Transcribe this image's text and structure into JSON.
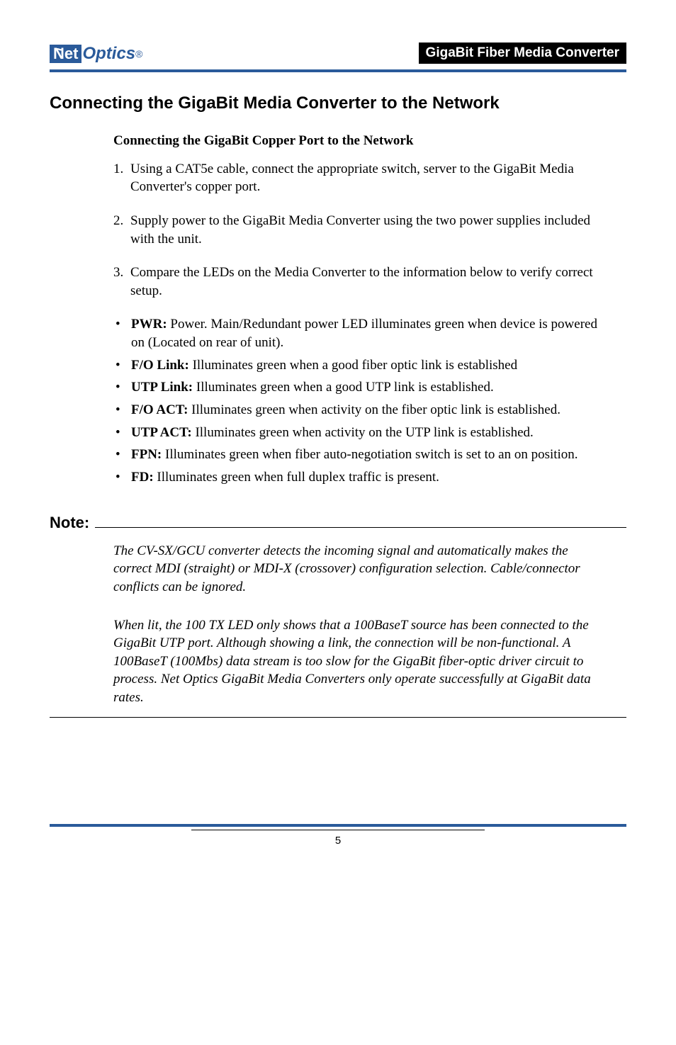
{
  "header": {
    "logo_net": "Net",
    "logo_optics": "Optics",
    "logo_reg": "®",
    "product_title": "GigaBit Fiber Media Converter"
  },
  "section": {
    "title": "Connecting the GigaBit Media Converter to the Network",
    "sub_heading": "Connecting the GigaBit Copper Port to the Network",
    "steps": [
      {
        "num": "1.",
        "text": "Using a CAT5e cable, connect the appropriate switch, server to the GigaBit Media Converter's copper port."
      },
      {
        "num": "2.",
        "text": "Supply power to the GigaBit Media Converter using the two power supplies included with the unit."
      },
      {
        "num": "3.",
        "text": "Compare the LEDs on the Media Converter to the information below to verify correct setup."
      }
    ],
    "bullets": [
      {
        "bold": "PWR:",
        "text": " Power. Main/Redundant power LED illuminates green when device is powered on  (Located on rear of unit)."
      },
      {
        "bold": "F/O Link:",
        "text": " Illuminates green when a good fiber optic link is established"
      },
      {
        "bold": "UTP Link:",
        "text": " Illuminates green when a good UTP link is established."
      },
      {
        "bold": "F/O ACT:",
        "text": " Illuminates green when activity on the fiber optic link is established."
      },
      {
        "bold": "UTP ACT:",
        "text": " Illuminates green when activity on the UTP link is established."
      },
      {
        "bold": "FPN:",
        "text": " Illuminates green when fiber auto-negotiation switch is set to an on position."
      },
      {
        "bold": "FD:",
        "text": " Illuminates green when full duplex traffic is present."
      }
    ]
  },
  "note": {
    "label": "Note:",
    "para1": "The CV-SX/GCU converter detects the incoming signal and automatically makes the correct MDI (straight) or MDI-X (crossover) configuration selection. Cable/connector conflicts can be ignored.",
    "para2": "When lit, the 100 TX LED only shows that a 100BaseT source has been connected to the GigaBit UTP port.  Although showing a link, the connection will be non-functional.  A 100BaseT (100Mbs) data stream is too slow for the GigaBit fiber-optic driver circuit to process.  Net Optics GigaBit Media Converters only operate successfully at GigaBit data rates."
  },
  "footer": {
    "page_number": "5"
  }
}
